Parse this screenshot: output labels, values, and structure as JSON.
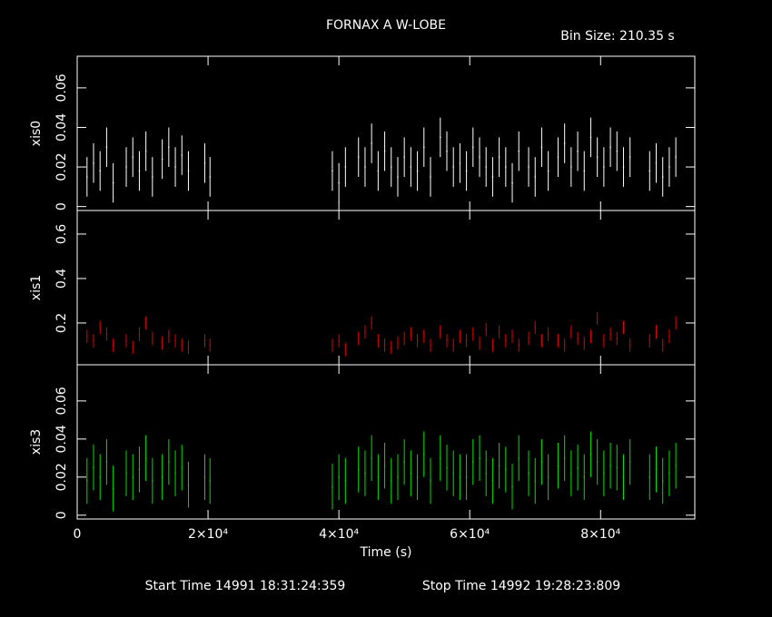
{
  "chart_data": [
    {
      "type": "errorbar",
      "title": "FORNAX A W-LOBE",
      "subtitle": "Bin Size: 210.35 s",
      "start_time": "Start Time 14991 18:31:24:359",
      "stop_time": "Stop Time 14992 19:28:23:809",
      "ylabel": "xis0",
      "color": "#ffffff",
      "ylim": [
        -0.002,
        0.076
      ],
      "yticks": [
        0,
        0.02,
        0.04,
        0.06
      ],
      "error": 0.01,
      "x": [
        1500,
        2500,
        3500,
        4500,
        5500,
        7500,
        8500,
        9500,
        10500,
        11500,
        13000,
        14000,
        15000,
        16000,
        17000,
        19500,
        20300,
        39000,
        40000,
        41000,
        43000,
        44000,
        45000,
        46000,
        47000,
        48000,
        49000,
        50000,
        51000,
        52000,
        53000,
        54000,
        55500,
        56500,
        57500,
        58500,
        59500,
        60500,
        61500,
        62500,
        63500,
        64500,
        65500,
        66500,
        67500,
        69000,
        70000,
        71000,
        72000,
        73500,
        74500,
        75500,
        76500,
        77500,
        78500,
        79500,
        80500,
        81500,
        82500,
        83500,
        84500,
        87500,
        88500,
        89500,
        90500,
        91500
      ],
      "values": [
        0.015,
        0.022,
        0.018,
        0.03,
        0.012,
        0.02,
        0.025,
        0.018,
        0.028,
        0.015,
        0.024,
        0.03,
        0.02,
        0.026,
        0.018,
        0.022,
        0.015,
        0.018,
        0.012,
        0.02,
        0.025,
        0.02,
        0.032,
        0.018,
        0.028,
        0.02,
        0.015,
        0.025,
        0.02,
        0.018,
        0.03,
        0.015,
        0.035,
        0.028,
        0.02,
        0.022,
        0.018,
        0.03,
        0.025,
        0.02,
        0.015,
        0.025,
        0.02,
        0.012,
        0.028,
        0.02,
        0.015,
        0.03,
        0.018,
        0.025,
        0.032,
        0.02,
        0.028,
        0.018,
        0.035,
        0.025,
        0.02,
        0.03,
        0.028,
        0.02,
        0.025,
        0.018,
        0.022,
        0.015,
        0.02,
        0.025
      ]
    },
    {
      "type": "errorbar",
      "ylabel": "xis1",
      "color": "#e00000",
      "ylim": [
        0.012,
        0.706
      ],
      "yticks": [
        0.2,
        0.4,
        0.6
      ],
      "error": 0.03,
      "x": [
        1500,
        2500,
        3500,
        4500,
        5500,
        7500,
        8500,
        9500,
        10500,
        11500,
        13000,
        14000,
        15000,
        16000,
        17000,
        19500,
        20300,
        39000,
        40000,
        41000,
        43000,
        44000,
        45000,
        46000,
        47000,
        48000,
        49000,
        50000,
        51000,
        52000,
        53000,
        54000,
        55500,
        56500,
        57500,
        58500,
        59500,
        60500,
        61500,
        62500,
        63500,
        64500,
        65500,
        66500,
        67500,
        69000,
        70000,
        71000,
        72000,
        73500,
        74500,
        75500,
        76500,
        77500,
        78500,
        79500,
        80500,
        81500,
        82500,
        83500,
        84500,
        87500,
        88500,
        89500,
        90500,
        91500
      ],
      "values": [
        0.14,
        0.12,
        0.18,
        0.15,
        0.1,
        0.12,
        0.09,
        0.15,
        0.2,
        0.13,
        0.11,
        0.14,
        0.12,
        0.1,
        0.09,
        0.12,
        0.1,
        0.1,
        0.12,
        0.08,
        0.13,
        0.16,
        0.2,
        0.12,
        0.1,
        0.09,
        0.11,
        0.13,
        0.15,
        0.12,
        0.14,
        0.1,
        0.16,
        0.12,
        0.1,
        0.14,
        0.12,
        0.15,
        0.11,
        0.17,
        0.1,
        0.16,
        0.12,
        0.14,
        0.1,
        0.13,
        0.18,
        0.12,
        0.15,
        0.12,
        0.1,
        0.16,
        0.13,
        0.11,
        0.14,
        0.22,
        0.12,
        0.15,
        0.13,
        0.18,
        0.1,
        0.12,
        0.16,
        0.1,
        0.14,
        0.2
      ]
    },
    {
      "type": "errorbar",
      "ylabel": "xis3",
      "color": "#00e000",
      "ylim": [
        -0.002,
        0.079
      ],
      "yticks": [
        0,
        0.02,
        0.04,
        0.06
      ],
      "error": 0.012,
      "xlabel": "Time (s)",
      "xlim": [
        0,
        94400
      ],
      "xticks": [
        0,
        {
          "value": 20000,
          "label": "2×10⁴"
        },
        {
          "value": 40000,
          "label": "4×10⁴"
        },
        {
          "value": 60000,
          "label": "6×10⁴"
        },
        {
          "value": 80000,
          "label": "8×10⁴"
        }
      ],
      "x": [
        1500,
        2500,
        3500,
        4500,
        5500,
        7500,
        8500,
        9500,
        10500,
        11500,
        13000,
        14000,
        15000,
        16000,
        17000,
        19500,
        20300,
        39000,
        40000,
        41000,
        43000,
        44000,
        45000,
        46000,
        47000,
        48000,
        49000,
        50000,
        51000,
        52000,
        53000,
        54000,
        55500,
        56500,
        57500,
        58500,
        59500,
        60500,
        61500,
        62500,
        63500,
        64500,
        65500,
        66500,
        67500,
        69000,
        70000,
        71000,
        72000,
        73500,
        74500,
        75500,
        76500,
        77500,
        78500,
        79500,
        80500,
        81500,
        82500,
        83500,
        84500,
        87500,
        88500,
        89500,
        90500,
        91500
      ],
      "values": [
        0.018,
        0.025,
        0.02,
        0.028,
        0.014,
        0.022,
        0.02,
        0.024,
        0.03,
        0.018,
        0.02,
        0.028,
        0.022,
        0.025,
        0.016,
        0.02,
        0.018,
        0.015,
        0.02,
        0.018,
        0.024,
        0.022,
        0.03,
        0.02,
        0.026,
        0.018,
        0.02,
        0.028,
        0.022,
        0.02,
        0.032,
        0.018,
        0.03,
        0.025,
        0.022,
        0.02,
        0.02,
        0.028,
        0.03,
        0.022,
        0.018,
        0.026,
        0.024,
        0.015,
        0.03,
        0.022,
        0.018,
        0.028,
        0.02,
        0.026,
        0.03,
        0.022,
        0.025,
        0.02,
        0.032,
        0.028,
        0.022,
        0.026,
        0.025,
        0.02,
        0.028,
        0.02,
        0.024,
        0.018,
        0.022,
        0.026
      ]
    }
  ]
}
